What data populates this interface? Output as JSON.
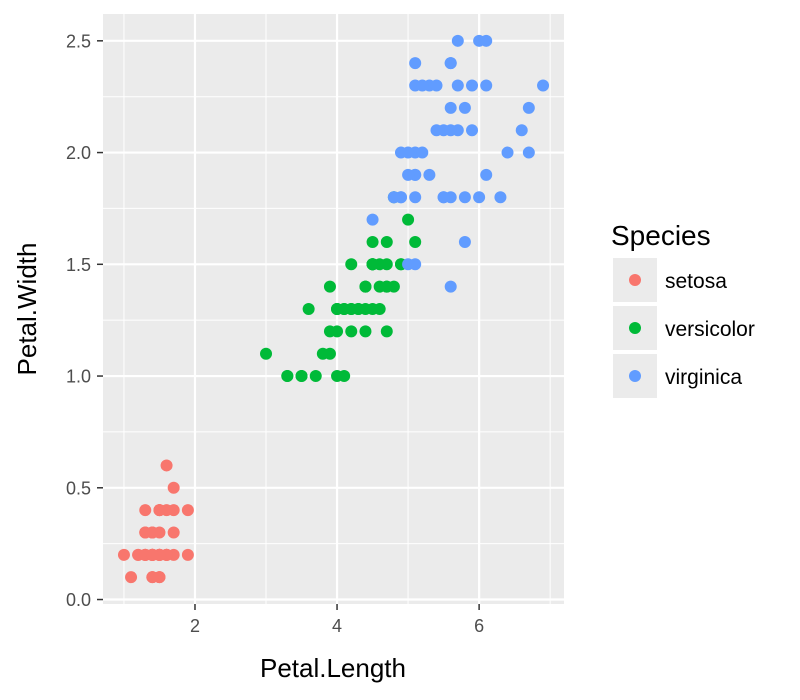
{
  "chart_data": {
    "type": "scatter",
    "xlabel": "Petal.Length",
    "ylabel": "Petal.Width",
    "xlim": [
      0.705,
      7.195
    ],
    "ylim": [
      -0.02,
      2.62
    ],
    "x_ticks": [
      2,
      4,
      6
    ],
    "y_ticks": [
      0.0,
      0.5,
      1.0,
      1.5,
      2.0,
      2.5
    ],
    "x_tick_labels": [
      "2",
      "4",
      "6"
    ],
    "y_tick_labels": [
      "0.0",
      "0.5",
      "1.0",
      "1.5",
      "2.0",
      "2.5"
    ],
    "grid": true,
    "legend": {
      "title": "Species",
      "placement": "right"
    },
    "series": [
      {
        "name": "setosa",
        "color": "#F8766D",
        "points": [
          [
            1.4,
            0.2
          ],
          [
            1.4,
            0.2
          ],
          [
            1.3,
            0.2
          ],
          [
            1.5,
            0.2
          ],
          [
            1.4,
            0.2
          ],
          [
            1.7,
            0.4
          ],
          [
            1.4,
            0.3
          ],
          [
            1.5,
            0.2
          ],
          [
            1.4,
            0.2
          ],
          [
            1.5,
            0.1
          ],
          [
            1.5,
            0.2
          ],
          [
            1.6,
            0.2
          ],
          [
            1.4,
            0.1
          ],
          [
            1.1,
            0.1
          ],
          [
            1.2,
            0.2
          ],
          [
            1.5,
            0.4
          ],
          [
            1.3,
            0.4
          ],
          [
            1.4,
            0.3
          ],
          [
            1.7,
            0.3
          ],
          [
            1.5,
            0.3
          ],
          [
            1.7,
            0.2
          ],
          [
            1.5,
            0.4
          ],
          [
            1.0,
            0.2
          ],
          [
            1.7,
            0.5
          ],
          [
            1.9,
            0.2
          ],
          [
            1.6,
            0.2
          ],
          [
            1.6,
            0.4
          ],
          [
            1.5,
            0.2
          ],
          [
            1.4,
            0.2
          ],
          [
            1.6,
            0.2
          ],
          [
            1.6,
            0.2
          ],
          [
            1.5,
            0.4
          ],
          [
            1.5,
            0.1
          ],
          [
            1.4,
            0.2
          ],
          [
            1.5,
            0.2
          ],
          [
            1.2,
            0.2
          ],
          [
            1.3,
            0.2
          ],
          [
            1.4,
            0.1
          ],
          [
            1.3,
            0.2
          ],
          [
            1.5,
            0.2
          ],
          [
            1.3,
            0.3
          ],
          [
            1.3,
            0.3
          ],
          [
            1.3,
            0.2
          ],
          [
            1.6,
            0.6
          ],
          [
            1.9,
            0.4
          ],
          [
            1.4,
            0.3
          ],
          [
            1.6,
            0.2
          ],
          [
            1.4,
            0.2
          ],
          [
            1.5,
            0.2
          ],
          [
            1.4,
            0.2
          ]
        ]
      },
      {
        "name": "versicolor",
        "color": "#00BA38",
        "points": [
          [
            4.7,
            1.4
          ],
          [
            4.5,
            1.5
          ],
          [
            4.9,
            1.5
          ],
          [
            4.0,
            1.3
          ],
          [
            4.6,
            1.5
          ],
          [
            4.5,
            1.3
          ],
          [
            4.7,
            1.6
          ],
          [
            3.3,
            1.0
          ],
          [
            4.6,
            1.3
          ],
          [
            3.9,
            1.4
          ],
          [
            3.5,
            1.0
          ],
          [
            4.2,
            1.5
          ],
          [
            4.0,
            1.0
          ],
          [
            4.7,
            1.4
          ],
          [
            3.6,
            1.3
          ],
          [
            4.4,
            1.4
          ],
          [
            4.5,
            1.5
          ],
          [
            4.1,
            1.0
          ],
          [
            4.5,
            1.5
          ],
          [
            3.9,
            1.1
          ],
          [
            4.8,
            1.8
          ],
          [
            4.0,
            1.3
          ],
          [
            4.9,
            1.5
          ],
          [
            4.7,
            1.2
          ],
          [
            4.3,
            1.3
          ],
          [
            4.4,
            1.4
          ],
          [
            4.8,
            1.4
          ],
          [
            5.0,
            1.7
          ],
          [
            4.5,
            1.5
          ],
          [
            3.5,
            1.0
          ],
          [
            3.8,
            1.1
          ],
          [
            3.7,
            1.0
          ],
          [
            3.9,
            1.2
          ],
          [
            5.1,
            1.6
          ],
          [
            4.5,
            1.5
          ],
          [
            4.5,
            1.6
          ],
          [
            4.7,
            1.5
          ],
          [
            4.4,
            1.3
          ],
          [
            4.1,
            1.3
          ],
          [
            4.0,
            1.3
          ],
          [
            4.4,
            1.2
          ],
          [
            4.6,
            1.4
          ],
          [
            4.0,
            1.2
          ],
          [
            3.3,
            1.0
          ],
          [
            4.2,
            1.3
          ],
          [
            4.2,
            1.2
          ],
          [
            4.2,
            1.3
          ],
          [
            4.3,
            1.3
          ],
          [
            3.0,
            1.1
          ],
          [
            4.1,
            1.3
          ]
        ]
      },
      {
        "name": "virginica",
        "color": "#619CFF",
        "points": [
          [
            6.0,
            2.5
          ],
          [
            5.1,
            1.9
          ],
          [
            5.9,
            2.1
          ],
          [
            5.6,
            1.8
          ],
          [
            5.8,
            2.2
          ],
          [
            6.6,
            2.1
          ],
          [
            4.5,
            1.7
          ],
          [
            6.3,
            1.8
          ],
          [
            5.8,
            1.8
          ],
          [
            6.1,
            2.5
          ],
          [
            5.1,
            2.0
          ],
          [
            5.3,
            1.9
          ],
          [
            5.5,
            2.1
          ],
          [
            5.0,
            2.0
          ],
          [
            5.1,
            2.4
          ],
          [
            5.3,
            2.3
          ],
          [
            5.5,
            1.8
          ],
          [
            6.7,
            2.2
          ],
          [
            6.9,
            2.3
          ],
          [
            5.0,
            1.5
          ],
          [
            5.7,
            2.3
          ],
          [
            4.9,
            2.0
          ],
          [
            6.7,
            2.0
          ],
          [
            4.9,
            1.8
          ],
          [
            5.7,
            2.1
          ],
          [
            6.0,
            1.8
          ],
          [
            4.8,
            1.8
          ],
          [
            4.9,
            1.8
          ],
          [
            5.6,
            2.1
          ],
          [
            5.8,
            1.6
          ],
          [
            6.1,
            1.9
          ],
          [
            6.4,
            2.0
          ],
          [
            5.6,
            2.2
          ],
          [
            5.1,
            1.5
          ],
          [
            5.6,
            1.4
          ],
          [
            6.1,
            2.3
          ],
          [
            5.6,
            2.4
          ],
          [
            5.5,
            1.8
          ],
          [
            4.8,
            1.8
          ],
          [
            5.4,
            2.1
          ],
          [
            5.6,
            2.4
          ],
          [
            5.1,
            2.3
          ],
          [
            5.1,
            1.9
          ],
          [
            5.9,
            2.3
          ],
          [
            5.7,
            2.5
          ],
          [
            5.2,
            2.3
          ],
          [
            5.0,
            1.9
          ],
          [
            5.2,
            2.0
          ],
          [
            5.4,
            2.3
          ],
          [
            5.1,
            1.8
          ]
        ]
      }
    ]
  }
}
